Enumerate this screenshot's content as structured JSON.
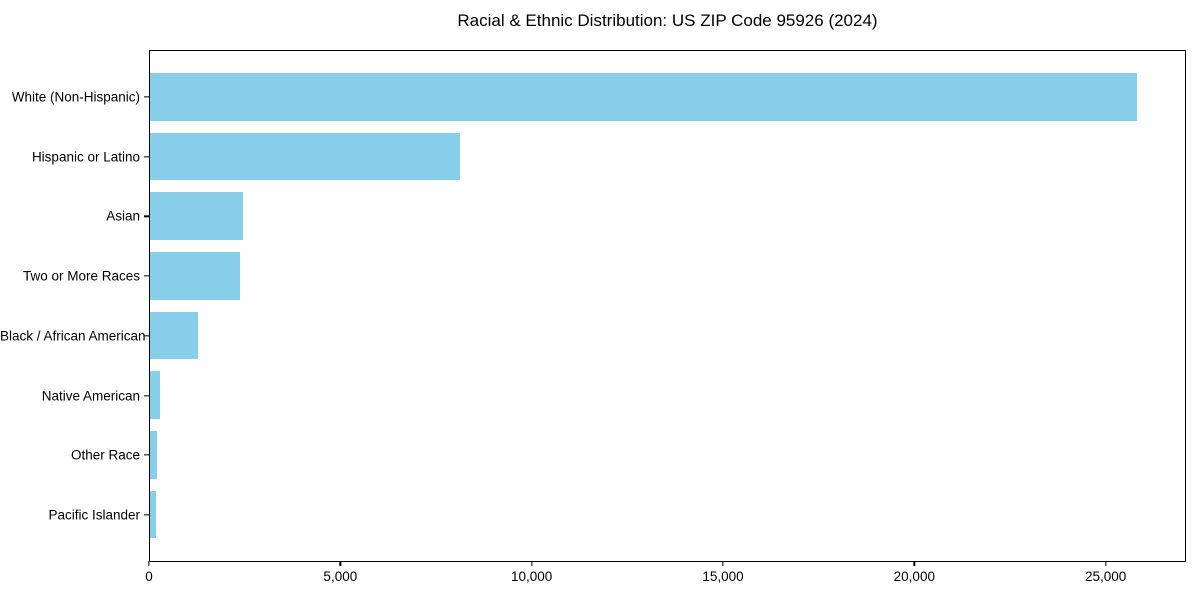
{
  "chart_data": {
    "type": "bar",
    "orientation": "horizontal",
    "title": "Racial & Ethnic Distribution: US ZIP Code 95926 (2024)",
    "categories": [
      "White (Non-Hispanic)",
      "Hispanic or Latino",
      "Asian",
      "Two or More Races",
      "Black / African American",
      "Native American",
      "Other Race",
      "Pacific Islander"
    ],
    "values": [
      25800,
      8100,
      2430,
      2350,
      1250,
      260,
      190,
      155
    ],
    "xlabel": "",
    "ylabel": "",
    "xlim": [
      0,
      27100
    ],
    "x_ticks": [
      0,
      5000,
      10000,
      15000,
      20000,
      25000
    ],
    "x_tick_labels": [
      "0",
      "5,000",
      "10,000",
      "15,000",
      "20,000",
      "25,000"
    ],
    "bar_color": "#87CEEB",
    "axis_color": "#000000",
    "background_color": "#FFFFFF",
    "grid": false,
    "legend": null
  }
}
